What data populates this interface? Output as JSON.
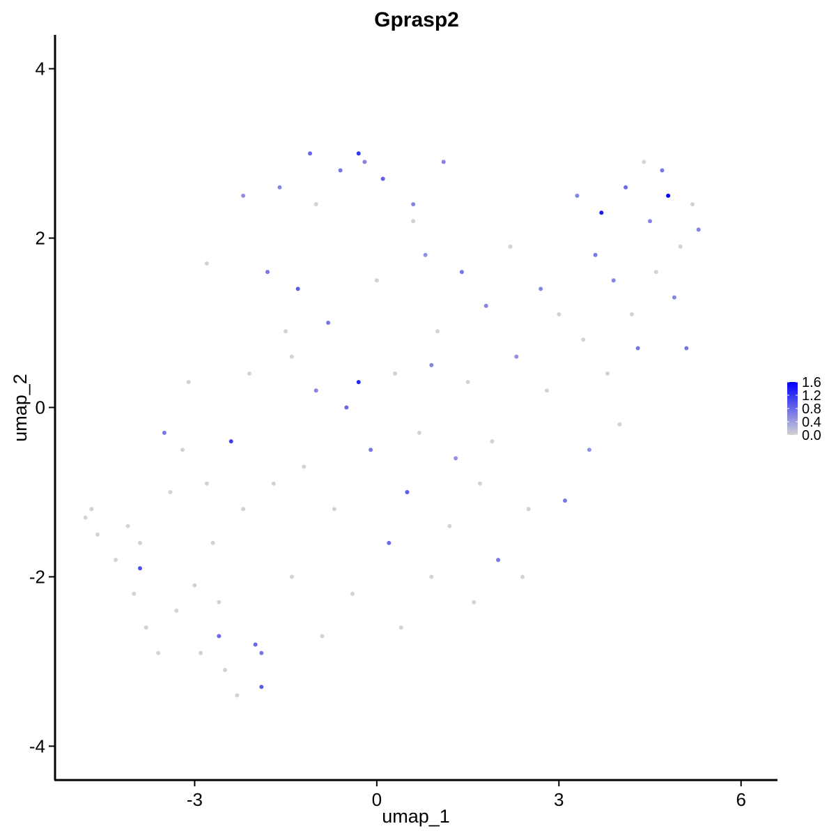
{
  "chart_data": {
    "type": "scatter",
    "title": "Gprasp2",
    "xlabel": "umap_1",
    "ylabel": "umap_2",
    "xlim": [
      -5.3,
      6.6
    ],
    "ylim": [
      -4.4,
      4.4
    ],
    "x_ticks": [
      {
        "value": -3,
        "label": "-3"
      },
      {
        "value": 0,
        "label": "0"
      },
      {
        "value": 3,
        "label": "3"
      },
      {
        "value": 6,
        "label": "6"
      }
    ],
    "y_ticks": [
      {
        "value": -4,
        "label": "-4"
      },
      {
        "value": -2,
        "label": "-2"
      },
      {
        "value": 0,
        "label": "0"
      },
      {
        "value": 2,
        "label": "2"
      },
      {
        "value": 4,
        "label": "4"
      }
    ],
    "grid": false,
    "legend": {
      "placement": "right",
      "type": "colorbar",
      "min": 0.0,
      "max": 1.6,
      "labels": [
        "1.6",
        "1.2",
        "0.8",
        "0.4",
        "0.0"
      ],
      "label_values": [
        1.6,
        1.2,
        0.8,
        0.4,
        0.0
      ],
      "low_color": "#d3d3d3",
      "high_color": "#0000ff"
    },
    "colors": {
      "zero_expression": "#d3d3d3",
      "high_expression": "#0000ff"
    },
    "points": [
      [
        -4.8,
        -1.3,
        0
      ],
      [
        -4.7,
        -1.2,
        0
      ],
      [
        -4.6,
        -1.5,
        0
      ],
      [
        -4.3,
        -1.8,
        0
      ],
      [
        -4.1,
        -1.4,
        0
      ],
      [
        -4.0,
        -2.2,
        0
      ],
      [
        -3.9,
        -1.6,
        0
      ],
      [
        -3.8,
        -2.6,
        0
      ],
      [
        -3.6,
        -2.9,
        0
      ],
      [
        -3.5,
        -0.3,
        0.7
      ],
      [
        -3.4,
        -1.0,
        0
      ],
      [
        -3.3,
        -2.4,
        0
      ],
      [
        -3.2,
        -0.5,
        0
      ],
      [
        -3.1,
        0.3,
        0
      ],
      [
        -3.0,
        -2.1,
        0
      ],
      [
        -2.9,
        -2.9,
        0
      ],
      [
        -2.8,
        -0.9,
        0
      ],
      [
        -2.7,
        -1.6,
        0
      ],
      [
        -2.6,
        -2.3,
        0
      ],
      [
        -2.5,
        -3.1,
        0
      ],
      [
        -2.4,
        -0.4,
        1.1
      ],
      [
        -2.3,
        -3.4,
        0
      ],
      [
        -2.2,
        -1.2,
        0
      ],
      [
        -2.1,
        0.4,
        0
      ],
      [
        -2.0,
        -2.8,
        0.8
      ],
      [
        -1.9,
        -3.3,
        0.9
      ],
      [
        -1.8,
        1.6,
        0.7
      ],
      [
        -1.7,
        -0.9,
        0
      ],
      [
        -1.6,
        2.6,
        0.6
      ],
      [
        -1.5,
        0.9,
        0
      ],
      [
        -1.4,
        -2.0,
        0
      ],
      [
        -1.3,
        1.4,
        0.9
      ],
      [
        -1.2,
        -0.7,
        0
      ],
      [
        -1.1,
        3.0,
        0.8
      ],
      [
        -1.0,
        0.2,
        0.6
      ],
      [
        -0.9,
        -2.7,
        0
      ],
      [
        -0.8,
        1.0,
        0.7
      ],
      [
        -0.7,
        -1.2,
        0
      ],
      [
        -0.6,
        2.8,
        0.7
      ],
      [
        -0.5,
        0.0,
        0.8
      ],
      [
        -0.4,
        -2.2,
        0
      ],
      [
        -0.3,
        0.3,
        1.3
      ],
      [
        -0.2,
        2.9,
        0.6
      ],
      [
        -0.1,
        -0.5,
        0.7
      ],
      [
        0.0,
        1.5,
        0
      ],
      [
        0.1,
        2.7,
        0.9
      ],
      [
        0.2,
        -1.6,
        0.8
      ],
      [
        0.3,
        0.4,
        0
      ],
      [
        0.4,
        -2.6,
        0
      ],
      [
        0.5,
        -1.0,
        0.9
      ],
      [
        0.6,
        2.2,
        0
      ],
      [
        0.7,
        -0.3,
        0
      ],
      [
        0.8,
        1.8,
        0.5
      ],
      [
        0.9,
        -2.0,
        0
      ],
      [
        1.0,
        0.9,
        0
      ],
      [
        1.1,
        2.9,
        0.6
      ],
      [
        1.2,
        -1.4,
        0
      ],
      [
        1.3,
        -0.6,
        0.5
      ],
      [
        1.4,
        1.6,
        0.7
      ],
      [
        1.5,
        0.3,
        0
      ],
      [
        1.6,
        -2.3,
        0
      ],
      [
        1.8,
        1.2,
        0.6
      ],
      [
        1.9,
        -0.4,
        0
      ],
      [
        2.0,
        -1.8,
        0.7
      ],
      [
        2.2,
        1.9,
        0
      ],
      [
        2.3,
        0.6,
        0.5
      ],
      [
        2.5,
        -1.2,
        0
      ],
      [
        2.7,
        1.4,
        0.6
      ],
      [
        2.8,
        0.2,
        0
      ],
      [
        3.0,
        1.1,
        0
      ],
      [
        3.1,
        -1.1,
        0.7
      ],
      [
        3.3,
        2.5,
        0.6
      ],
      [
        3.4,
        0.8,
        0
      ],
      [
        3.5,
        -0.5,
        0.5
      ],
      [
        3.6,
        1.8,
        0.7
      ],
      [
        3.7,
        2.3,
        1.4
      ],
      [
        3.8,
        0.4,
        0
      ],
      [
        3.9,
        1.5,
        0.6
      ],
      [
        4.0,
        -0.2,
        0
      ],
      [
        4.1,
        2.6,
        0.8
      ],
      [
        4.2,
        1.1,
        0
      ],
      [
        4.3,
        0.7,
        0.7
      ],
      [
        4.4,
        2.9,
        0
      ],
      [
        4.5,
        2.2,
        0.6
      ],
      [
        4.6,
        1.6,
        0
      ],
      [
        4.7,
        2.8,
        0.7
      ],
      [
        4.8,
        2.5,
        1.6
      ],
      [
        4.9,
        1.3,
        0.6
      ],
      [
        5.0,
        1.9,
        0
      ],
      [
        5.1,
        0.7,
        0.7
      ],
      [
        5.2,
        2.4,
        0
      ],
      [
        5.3,
        2.1,
        0.6
      ],
      [
        -3.9,
        -1.9,
        1.0
      ],
      [
        -2.6,
        -2.7,
        0.8
      ],
      [
        -1.9,
        -2.9,
        0.7
      ],
      [
        -0.3,
        3.0,
        1.2
      ],
      [
        0.6,
        2.4,
        0.6
      ],
      [
        -2.8,
        1.7,
        0
      ],
      [
        -2.2,
        2.5,
        0.5
      ],
      [
        -1.0,
        2.4,
        0
      ],
      [
        1.7,
        -0.9,
        0
      ],
      [
        2.4,
        -2.0,
        0
      ],
      [
        0.9,
        0.5,
        0.6
      ],
      [
        -1.4,
        0.6,
        0
      ]
    ]
  }
}
